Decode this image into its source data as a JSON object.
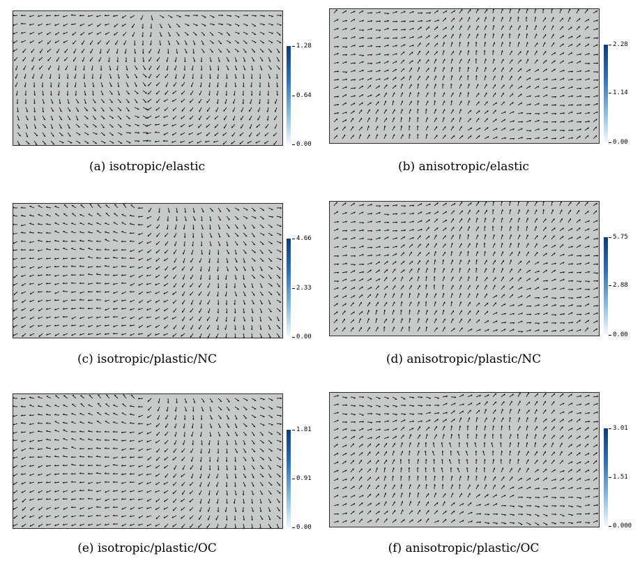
{
  "panels": [
    {
      "caption": "(a) isotropic/elastic",
      "colorbar": {
        "max": "1.28",
        "mid": "0.64",
        "min": "0.00"
      },
      "material": "isotropic",
      "pattern": "elastic"
    },
    {
      "caption": "(b) anisotropic/elastic",
      "colorbar": {
        "max": "2.28",
        "mid": "1.14",
        "min": "0.00"
      },
      "material": "anisotropic",
      "pattern": "elastic"
    },
    {
      "caption": "(c) isotropic/plastic/NC",
      "colorbar": {
        "max": "4.66",
        "mid": "2.33",
        "min": "0.00"
      },
      "material": "isotropic",
      "pattern": "nc"
    },
    {
      "caption": "(d) anisotropic/plastic/NC",
      "colorbar": {
        "max": "5.75",
        "mid": "2.88",
        "min": "0.00"
      },
      "material": "anisotropic",
      "pattern": "nc"
    },
    {
      "caption": "(e) isotropic/plastic/OC",
      "colorbar": {
        "max": "1.81",
        "mid": "0.91",
        "min": "0.00"
      },
      "material": "isotropic",
      "pattern": "oc"
    },
    {
      "caption": "(f) anisotropic/plastic/OC",
      "colorbar": {
        "max": "3.01",
        "mid": "1.51",
        "min": "0.000"
      },
      "material": "anisotropic",
      "pattern": "oc"
    }
  ],
  "colors": {
    "field": "#c8c9c9",
    "arrow": "#111111",
    "scale_high": "#0b3d7a",
    "scale_low": "#f4f9fd"
  }
}
